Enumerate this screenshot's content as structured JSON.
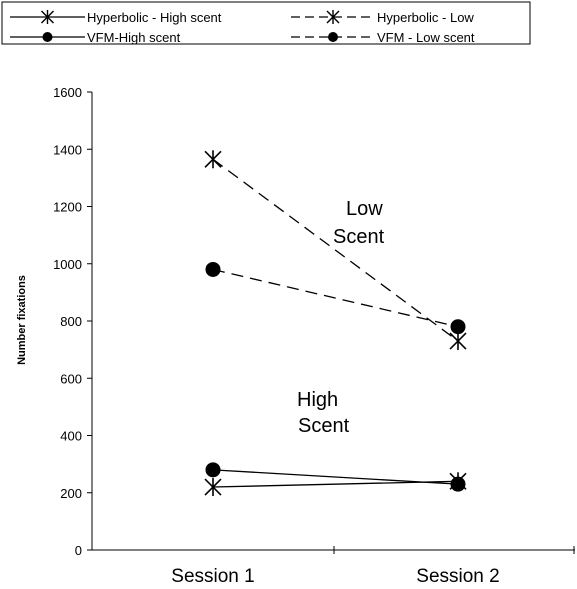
{
  "chart_data": {
    "type": "line",
    "categories": [
      "Session 1",
      "Session 2"
    ],
    "ylabel": "Number fixations",
    "xlabel": "",
    "ylim": [
      0,
      1600
    ],
    "yticks": [
      0,
      200,
      400,
      600,
      800,
      1000,
      1200,
      1400,
      1600
    ],
    "grid": false,
    "legend_position": "top",
    "series": [
      {
        "name": "Hyperbolic - High scent",
        "values": [
          220,
          240
        ],
        "marker": "asterisk",
        "dash": "solid"
      },
      {
        "name": "Hyperbolic - Low",
        "values": [
          1365,
          730
        ],
        "marker": "asterisk",
        "dash": "dashed"
      },
      {
        "name": "VFM-High scent",
        "values": [
          280,
          230
        ],
        "marker": "circle",
        "dash": "solid"
      },
      {
        "name": "VFM - Low scent",
        "values": [
          980,
          780
        ],
        "marker": "circle",
        "dash": "dashed"
      }
    ],
    "annotations": [
      {
        "lines": [
          "Low",
          "Scent"
        ]
      },
      {
        "lines": [
          "High",
          "Scent"
        ]
      }
    ],
    "colors": {
      "line": "#000000",
      "background": "#ffffff"
    }
  }
}
